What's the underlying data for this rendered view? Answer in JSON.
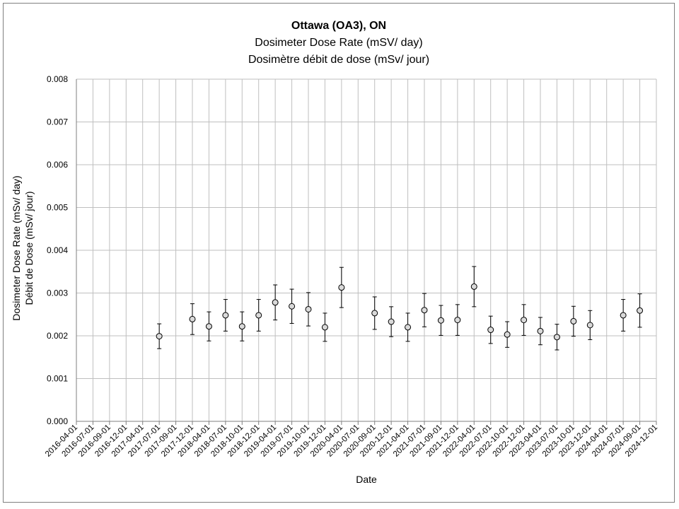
{
  "chart_data": {
    "type": "scatter",
    "title": "Ottawa (OA3), ON",
    "subtitle": "Dosimeter Dose Rate (mSV/ day)",
    "subtitle2": "Dosimètre débit de dose (mSv/ jour)",
    "xlabel": "Date",
    "ylabel": "Dosimeter Dose Rate (mSv/ day)",
    "ylabel2": "Débit de Dose (mSv/ jour)",
    "ylim": [
      0,
      0.008
    ],
    "y_ticks": [
      "0.000",
      "0.001",
      "0.002",
      "0.003",
      "0.004",
      "0.005",
      "0.006",
      "0.007",
      "0.008"
    ],
    "categories": [
      "2016-04-01",
      "2016-07-01",
      "2016-09-01",
      "2016-12-01",
      "2017-04-01",
      "2017-07-01",
      "2017-09-01",
      "2017-12-01",
      "2018-04-01",
      "2018-07-01",
      "2018-10-01",
      "2018-12-01",
      "2019-04-01",
      "2019-07-01",
      "2019-10-01",
      "2019-12-01",
      "2020-04-01",
      "2020-07-01",
      "2020-09-01",
      "2020-12-01",
      "2021-04-01",
      "2021-07-01",
      "2021-09-01",
      "2021-12-01",
      "2022-04-01",
      "2022-07-01",
      "2022-10-01",
      "2022-12-01",
      "2023-04-01",
      "2023-07-01",
      "2023-10-01",
      "2023-12-01",
      "2024-04-01",
      "2024-07-01",
      "2024-09-01",
      "2024-12-01"
    ],
    "grid": true,
    "series": [
      {
        "marker": "circle",
        "marker_fill": "#d9d9d9",
        "marker_stroke": "#000000",
        "error_bar_color": "#000000",
        "points": [
          {
            "x": "2017-07-01",
            "y": 0.00199,
            "err": 0.00029
          },
          {
            "x": "2017-12-01",
            "y": 0.00239,
            "err": 0.00036
          },
          {
            "x": "2018-04-01",
            "y": 0.00222,
            "err": 0.00034
          },
          {
            "x": "2018-07-01",
            "y": 0.00248,
            "err": 0.00037
          },
          {
            "x": "2018-10-01",
            "y": 0.00222,
            "err": 0.00034
          },
          {
            "x": "2018-12-01",
            "y": 0.00248,
            "err": 0.00037
          },
          {
            "x": "2019-04-01",
            "y": 0.00278,
            "err": 0.00041
          },
          {
            "x": "2019-07-01",
            "y": 0.00269,
            "err": 0.0004
          },
          {
            "x": "2019-10-01",
            "y": 0.00262,
            "err": 0.00039
          },
          {
            "x": "2019-12-01",
            "y": 0.0022,
            "err": 0.00033
          },
          {
            "x": "2020-04-01",
            "y": 0.00313,
            "err": 0.00047
          },
          {
            "x": "2020-09-01",
            "y": 0.00253,
            "err": 0.00038
          },
          {
            "x": "2020-12-01",
            "y": 0.00233,
            "err": 0.00035
          },
          {
            "x": "2021-04-01",
            "y": 0.0022,
            "err": 0.00033
          },
          {
            "x": "2021-07-01",
            "y": 0.0026,
            "err": 0.00039
          },
          {
            "x": "2021-09-01",
            "y": 0.00236,
            "err": 0.00035
          },
          {
            "x": "2021-12-01",
            "y": 0.00237,
            "err": 0.00036
          },
          {
            "x": "2022-04-01",
            "y": 0.00315,
            "err": 0.00047
          },
          {
            "x": "2022-07-01",
            "y": 0.00214,
            "err": 0.00032
          },
          {
            "x": "2022-10-01",
            "y": 0.00203,
            "err": 0.0003
          },
          {
            "x": "2022-12-01",
            "y": 0.00237,
            "err": 0.00036
          },
          {
            "x": "2023-04-01",
            "y": 0.00211,
            "err": 0.00032
          },
          {
            "x": "2023-07-01",
            "y": 0.00197,
            "err": 0.0003
          },
          {
            "x": "2023-10-01",
            "y": 0.00234,
            "err": 0.00035
          },
          {
            "x": "2023-12-01",
            "y": 0.00225,
            "err": 0.00034
          },
          {
            "x": "2024-07-01",
            "y": 0.00248,
            "err": 0.00037
          },
          {
            "x": "2024-09-01",
            "y": 0.00259,
            "err": 0.00039
          }
        ]
      }
    ]
  }
}
